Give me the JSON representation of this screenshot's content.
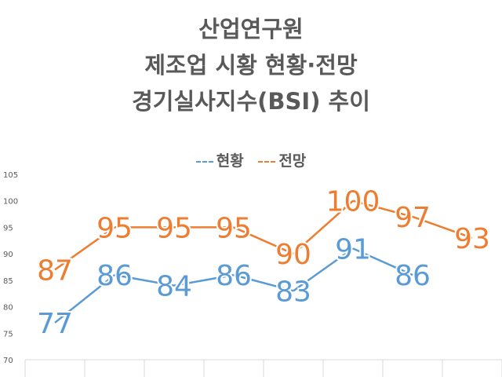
{
  "chart_data": {
    "type": "line",
    "title": [
      "산업연구원",
      "제조업 시황 현황·전망",
      "경기실사지수(BSI) 추이"
    ],
    "categories": [
      "",
      "",
      "",
      "",
      "",
      "",
      "",
      ""
    ],
    "ylim": [
      70,
      105
    ],
    "yticks": [
      "70",
      "75",
      "80",
      "85",
      "90",
      "95",
      "100",
      "105"
    ],
    "grid": false,
    "legend_position": "top",
    "series": [
      {
        "name": "현황",
        "color": "#5B9BD5",
        "values": [
          77,
          86,
          84,
          86,
          83,
          91,
          86,
          null
        ]
      },
      {
        "name": "전망",
        "color": "#ED7D31",
        "values": [
          87,
          95,
          95,
          95,
          90,
          100,
          97,
          93
        ]
      }
    ]
  },
  "legend": [
    {
      "label": "현황",
      "prefix": "- -",
      "color": "#5B9BD5"
    },
    {
      "label": "전망",
      "prefix": "- -",
      "color": "#ED7D31"
    }
  ]
}
